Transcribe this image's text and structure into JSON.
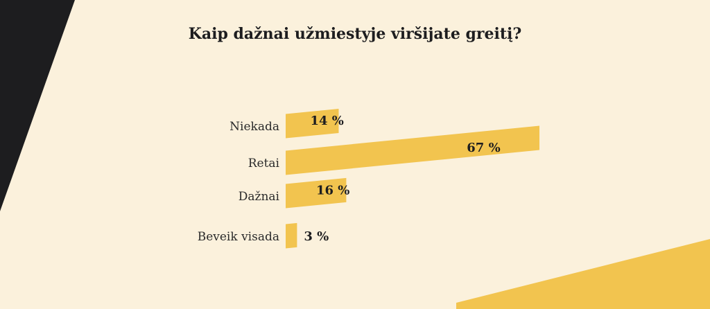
{
  "colors": {
    "background": "#fbf1dc",
    "bar": "#f2c44f",
    "dark_shape": "#1d1d1f",
    "text": "#1d1d1f"
  },
  "chart_data": {
    "type": "bar",
    "orientation": "horizontal",
    "title": "Kaip dažnai užmiestyje viršijate greitį?",
    "categories": [
      "Niekada",
      "Retai",
      "Dažnai",
      "Beveik visada"
    ],
    "values": [
      14,
      67,
      16,
      3
    ],
    "value_labels": [
      "14 %",
      "67 %",
      "16 %",
      "3 %"
    ],
    "unit": "%",
    "xlim": [
      0,
      67
    ],
    "grid": false,
    "legend": "none"
  }
}
